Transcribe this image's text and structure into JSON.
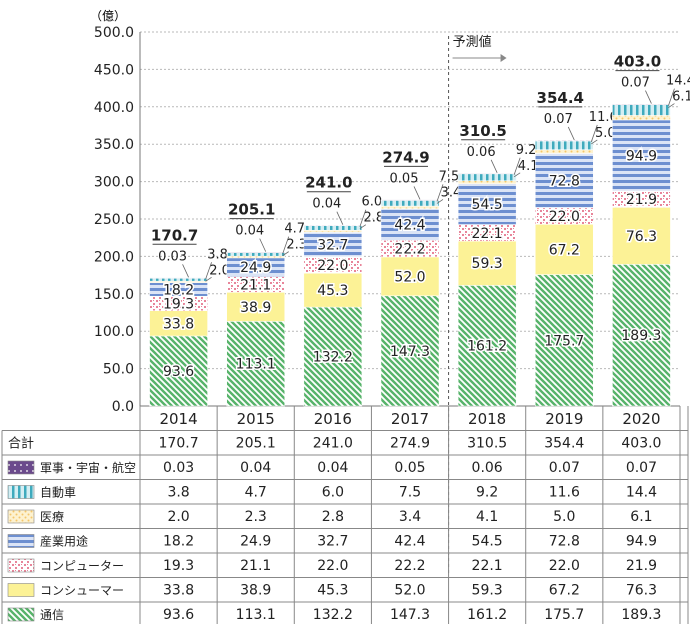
{
  "chart_data": {
    "type": "bar",
    "stacked": true,
    "unit_label": "（億）",
    "forecast_label": "予測値",
    "forecast_from": "2018",
    "categories": [
      "2014",
      "2015",
      "2016",
      "2017",
      "2018",
      "2019",
      "2020"
    ],
    "ylim": [
      0,
      500
    ],
    "yticks": [
      "0.0",
      "50.0",
      "100.0",
      "150.0",
      "200.0",
      "250.0",
      "300.0",
      "350.0",
      "400.0",
      "450.0",
      "500.0"
    ],
    "totals_label": "合計",
    "totals": [
      "170.7",
      "205.1",
      "241.0",
      "274.9",
      "310.5",
      "354.4",
      "403.0"
    ],
    "series": [
      {
        "name": "通信",
        "key": "tsushin",
        "color": "#57b36a",
        "pattern": "diagonal-stripes",
        "values": [
          93.6,
          113.1,
          132.2,
          147.3,
          161.2,
          175.7,
          189.3
        ],
        "labels": [
          "93.6",
          "113.1",
          "132.2",
          "147.3",
          "161.2",
          "175.7",
          "189.3"
        ]
      },
      {
        "name": "コンシューマー",
        "key": "consumer",
        "color": "#fcf296",
        "pattern": "solid",
        "values": [
          33.8,
          38.9,
          45.3,
          52.0,
          59.3,
          67.2,
          76.3
        ],
        "labels": [
          "33.8",
          "38.9",
          "45.3",
          "52.0",
          "59.3",
          "67.2",
          "76.3"
        ]
      },
      {
        "name": "コンピューター",
        "key": "computer",
        "color": "#e8859a",
        "pattern": "checker",
        "values": [
          19.3,
          21.1,
          22.0,
          22.2,
          22.1,
          22.0,
          21.9
        ],
        "labels": [
          "19.3",
          "21.1",
          "22.0",
          "22.2",
          "22.1",
          "22.0",
          "21.9"
        ]
      },
      {
        "name": "産業用途",
        "key": "sangyo",
        "color": "#6d8fd0",
        "pattern": "horizontal-lines",
        "values": [
          18.2,
          24.9,
          32.7,
          42.4,
          54.5,
          72.8,
          94.9
        ],
        "labels": [
          "18.2",
          "24.9",
          "32.7",
          "42.4",
          "54.5",
          "72.8",
          "94.9"
        ]
      },
      {
        "name": "医療",
        "key": "iryo",
        "color": "#f4c66a",
        "pattern": "dots",
        "values": [
          2.0,
          2.3,
          2.8,
          3.4,
          4.1,
          5.0,
          6.1
        ],
        "labels": [
          "2.0",
          "2.3",
          "2.8",
          "3.4",
          "4.1",
          "5.0",
          "6.1"
        ]
      },
      {
        "name": "自動車",
        "key": "jidosha",
        "color": "#3faabd",
        "pattern": "vertical-lines",
        "values": [
          3.8,
          4.7,
          6.0,
          7.5,
          9.2,
          11.6,
          14.4
        ],
        "labels": [
          "3.8",
          "4.7",
          "6.0",
          "7.5",
          "9.2",
          "11.6",
          "14.4"
        ]
      },
      {
        "name": "軍事・宇宙・航空",
        "key": "gunji",
        "color": "#6b4a8c",
        "pattern": "dots-purple",
        "values": [
          0.03,
          0.04,
          0.04,
          0.05,
          0.06,
          0.07,
          0.07
        ],
        "labels": [
          "0.03",
          "0.04",
          "0.04",
          "0.05",
          "0.06",
          "0.07",
          "0.07"
        ]
      }
    ],
    "table_row_order": [
      "gunji",
      "jidosha",
      "iryo",
      "sangyo",
      "computer",
      "consumer",
      "tsushin"
    ]
  }
}
